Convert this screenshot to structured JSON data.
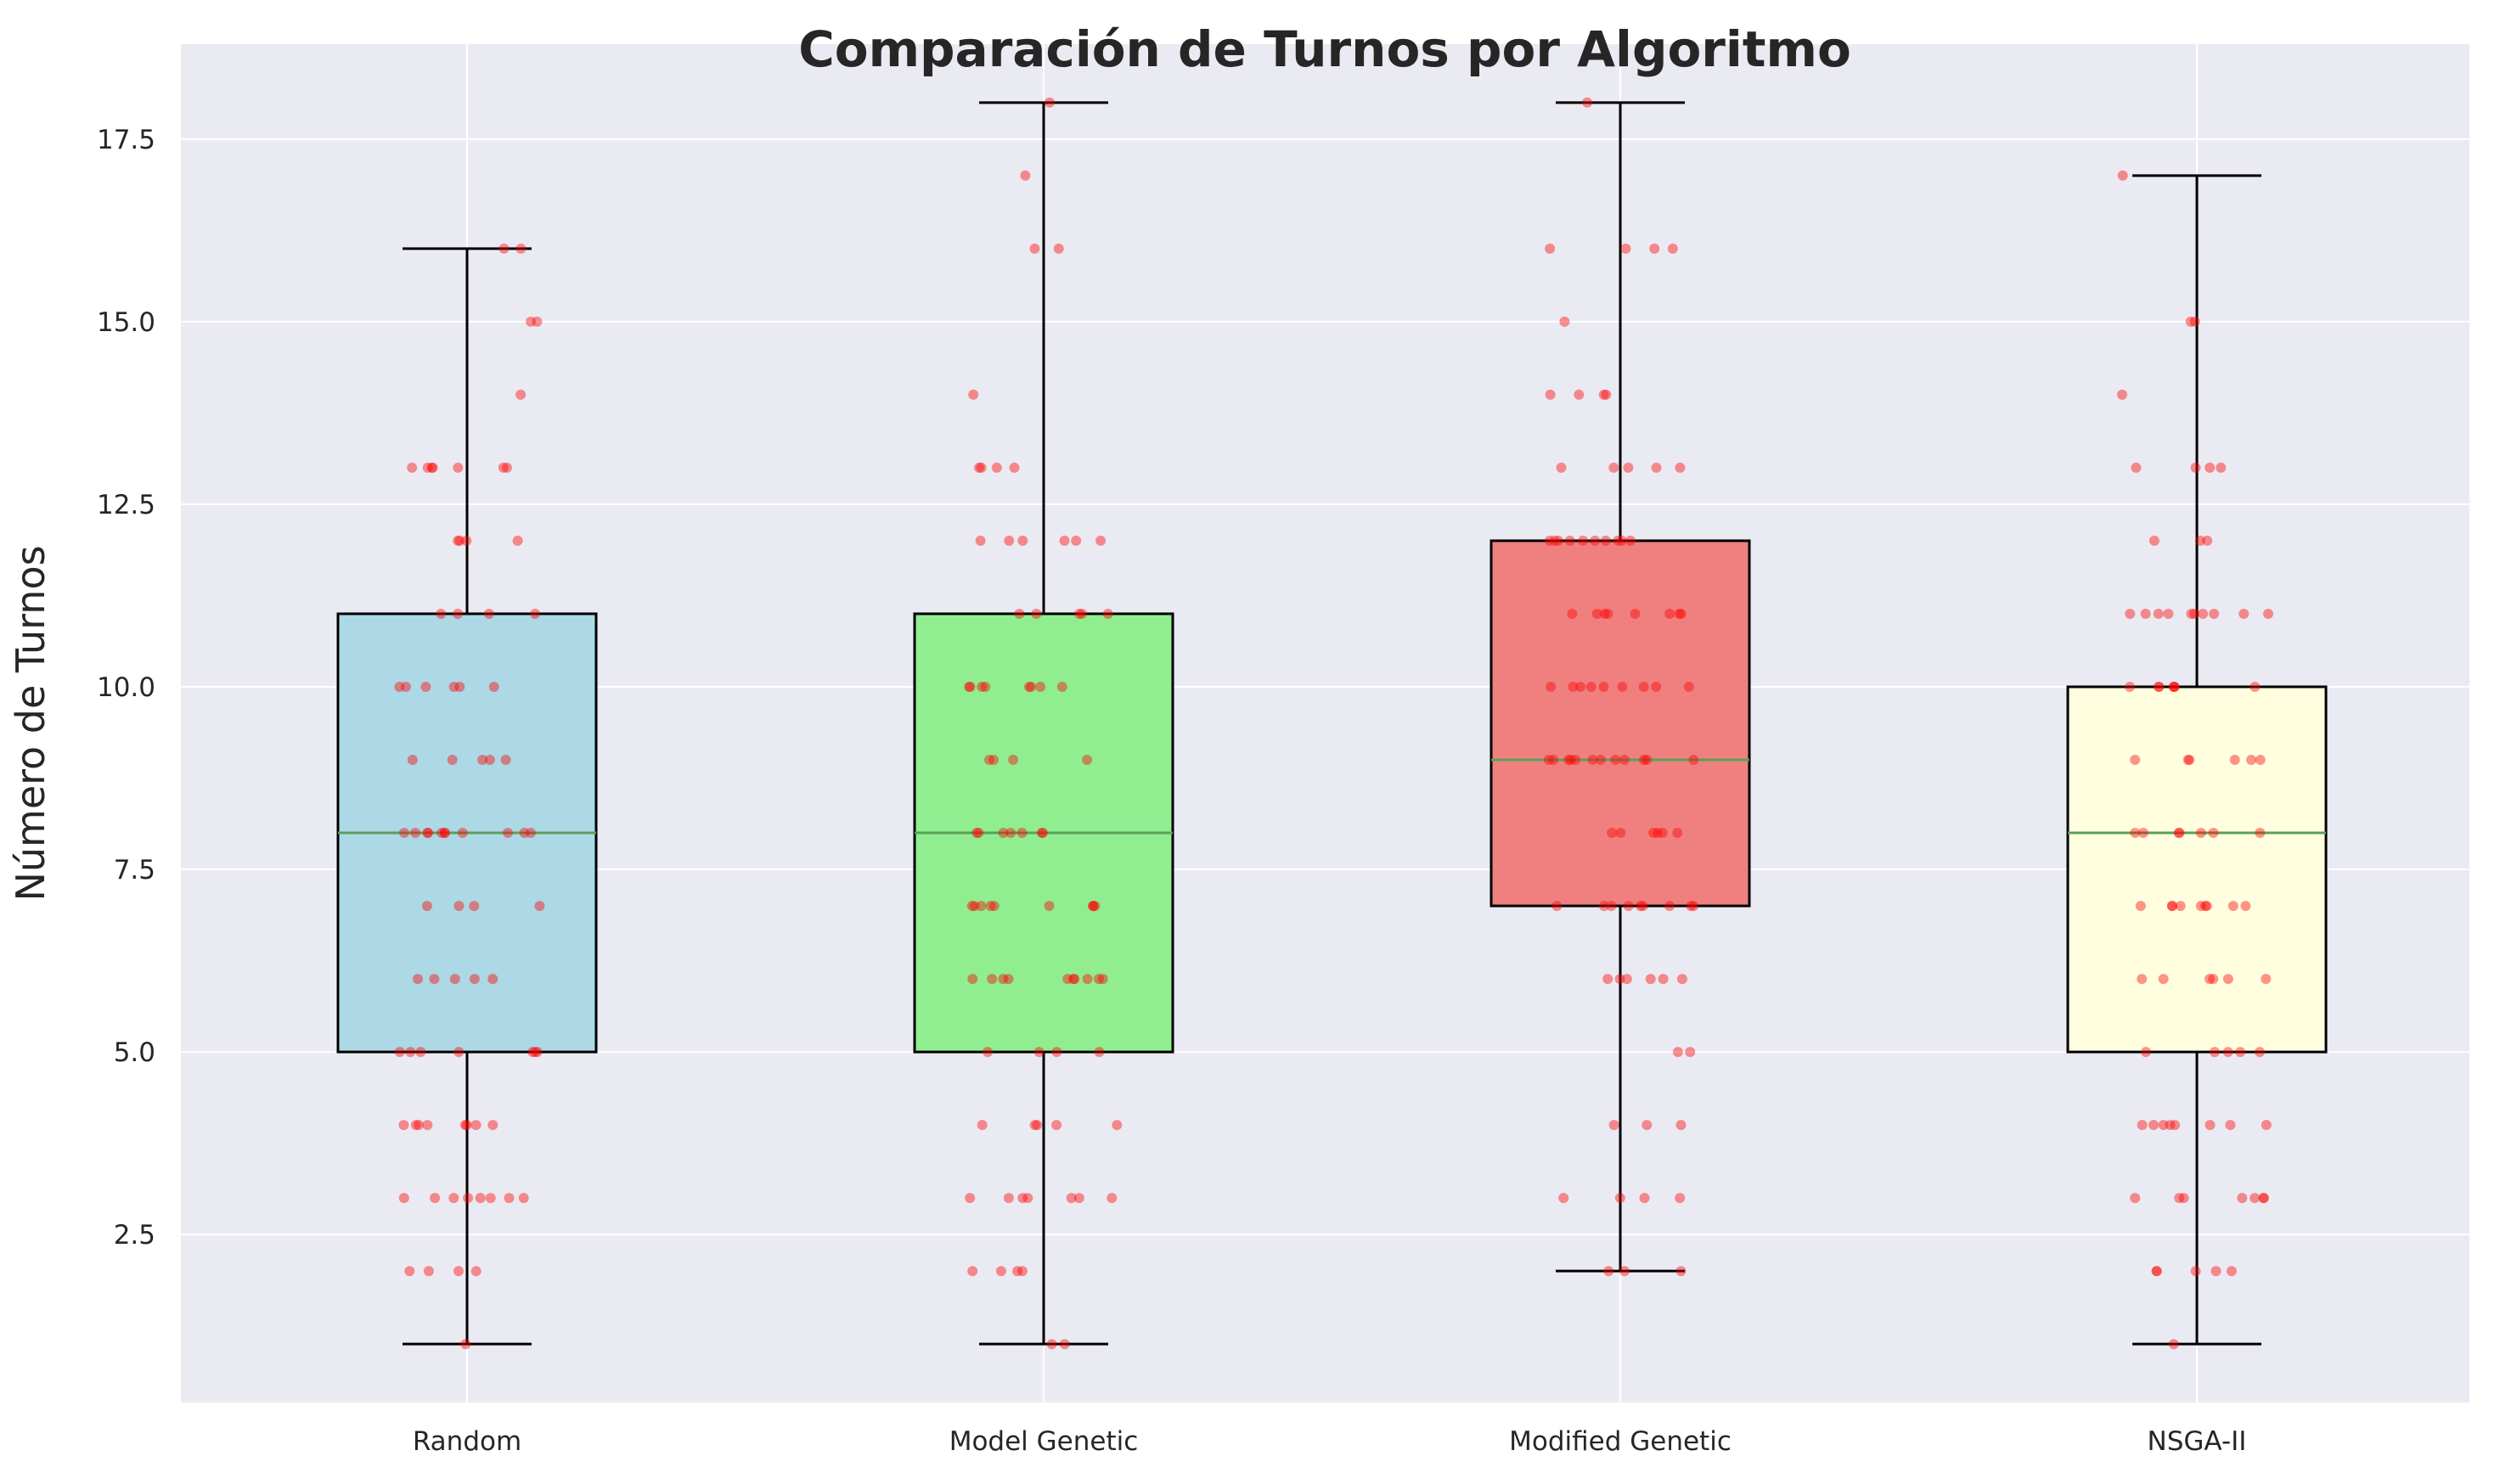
{
  "chart_data": {
    "type": "box",
    "title": "Comparación de Turnos por Algoritmo",
    "xlabel": "",
    "ylabel": "Número de Turnos",
    "ylim": [
      0.2,
      18.8
    ],
    "yticks": [
      "2.5",
      "5.0",
      "7.5",
      "10.0",
      "12.5",
      "15.0",
      "17.5"
    ],
    "grid": true,
    "legend": "none",
    "categories": [
      "Random",
      "Model Genetic",
      "Modified Genetic",
      "NSGA-II"
    ],
    "boxes": [
      {
        "category": "Random",
        "whisker_low": 1,
        "q1": 5,
        "median": 8,
        "q3": 11,
        "whisker_high": 16,
        "fill": "#add8e6",
        "points": [
          1,
          2,
          2,
          2,
          2,
          3,
          3,
          3,
          3,
          3,
          3,
          3,
          3,
          4,
          4,
          4,
          4,
          4,
          4,
          4,
          4,
          5,
          5,
          5,
          5,
          5,
          5,
          5,
          6,
          6,
          6,
          6,
          6,
          7,
          7,
          7,
          7,
          8,
          8,
          8,
          8,
          8,
          8,
          8,
          8,
          8,
          8,
          8,
          9,
          9,
          9,
          9,
          9,
          10,
          10,
          10,
          10,
          10,
          10,
          11,
          11,
          11,
          11,
          12,
          12,
          12,
          12,
          13,
          13,
          13,
          13,
          13,
          13,
          13,
          14,
          15,
          15,
          16,
          16
        ]
      },
      {
        "category": "Model Genetic",
        "whisker_low": 1,
        "q1": 5,
        "median": 8,
        "q3": 11,
        "whisker_high": 18,
        "fill": "#90ee90",
        "points": [
          1,
          1,
          2,
          2,
          2,
          2,
          3,
          3,
          3,
          3,
          3,
          3,
          3,
          4,
          4,
          4,
          4,
          4,
          5,
          5,
          5,
          5,
          6,
          6,
          6,
          6,
          6,
          6,
          6,
          6,
          6,
          6,
          7,
          7,
          7,
          7,
          7,
          7,
          7,
          7,
          7,
          8,
          8,
          8,
          8,
          8,
          8,
          8,
          9,
          9,
          9,
          9,
          10,
          10,
          10,
          10,
          10,
          10,
          10,
          10,
          11,
          11,
          11,
          11,
          11,
          12,
          12,
          12,
          12,
          12,
          12,
          13,
          13,
          13,
          13,
          14,
          16,
          16,
          17,
          18
        ]
      },
      {
        "category": "Modified Genetic",
        "whisker_low": 2,
        "q1": 7,
        "median": 9,
        "q3": 12,
        "whisker_high": 18,
        "fill": "#f08080",
        "points": [
          2,
          2,
          2,
          3,
          3,
          3,
          3,
          4,
          4,
          4,
          5,
          5,
          6,
          6,
          6,
          6,
          6,
          6,
          7,
          7,
          7,
          7,
          7,
          7,
          7,
          7,
          7,
          8,
          8,
          8,
          8,
          8,
          8,
          9,
          9,
          9,
          9,
          9,
          9,
          9,
          9,
          9,
          9,
          9,
          9,
          10,
          10,
          10,
          10,
          10,
          10,
          10,
          10,
          10,
          11,
          11,
          11,
          11,
          11,
          11,
          11,
          11,
          12,
          12,
          12,
          12,
          12,
          12,
          12,
          12,
          12,
          12,
          13,
          13,
          13,
          13,
          13,
          14,
          14,
          14,
          14,
          15,
          16,
          16,
          16,
          16,
          18
        ]
      },
      {
        "category": "NSGA-II",
        "whisker_low": 1,
        "q1": 5,
        "median": 8,
        "q3": 10,
        "whisker_high": 17,
        "fill": "#ffffe0",
        "points": [
          1,
          2,
          2,
          2,
          2,
          2,
          3,
          3,
          3,
          3,
          3,
          3,
          3,
          4,
          4,
          4,
          4,
          4,
          4,
          4,
          4,
          5,
          5,
          5,
          5,
          5,
          6,
          6,
          6,
          6,
          6,
          6,
          7,
          7,
          7,
          7,
          7,
          7,
          7,
          7,
          7,
          8,
          8,
          8,
          8,
          8,
          8,
          8,
          9,
          9,
          9,
          9,
          9,
          9,
          10,
          10,
          10,
          10,
          10,
          10,
          10,
          11,
          11,
          11,
          11,
          11,
          11,
          11,
          11,
          11,
          11,
          12,
          12,
          12,
          13,
          13,
          13,
          13,
          14,
          15,
          15,
          17
        ]
      }
    ]
  },
  "colors": {
    "plot_background": "#eaeaf2",
    "grid": "#ffffff",
    "median_line": "#5aa05a",
    "points": "#ff0000",
    "box_edge": "#000000"
  }
}
